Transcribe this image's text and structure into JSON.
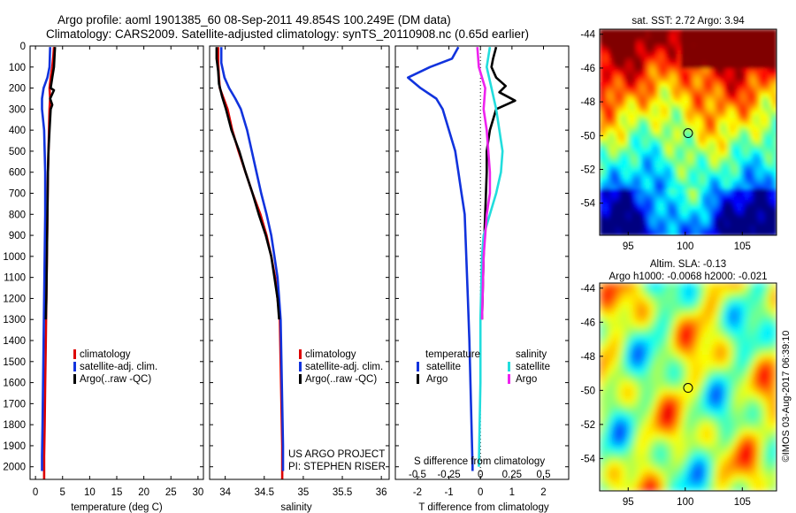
{
  "header": {
    "line1": "Argo profile: aoml 1901385_60 08-Sep-2011 49.854S 100.249E (DM data)",
    "line2": "Climatology: CARS2009. Satellite-adjusted climatology: synTS_20110908.nc (0.65d earlier)"
  },
  "colors": {
    "climatology": "#dd0000",
    "satellite": "#1133dd",
    "argo": "#000000",
    "sal_satellite": "#22dddd",
    "sal_argo": "#ee22ee"
  },
  "depth_axis": {
    "ticks": [
      0,
      100,
      200,
      300,
      400,
      500,
      600,
      700,
      800,
      900,
      1000,
      1100,
      1200,
      1300,
      1400,
      1500,
      1600,
      1700,
      1800,
      1900,
      2000
    ],
    "range": [
      0,
      2060
    ]
  },
  "chart_data": [
    {
      "type": "line",
      "id": "temperature",
      "xlabel": "temperature (deg C)",
      "xlim": [
        -1,
        31
      ],
      "xticks": [
        0,
        5,
        10,
        15,
        20,
        25,
        30
      ],
      "ylim": [
        0,
        2060
      ],
      "legend": {
        "items": [
          "climatology",
          "satellite-adj. clim.",
          "Argo(..raw -QC)"
        ],
        "placement": "center-bottom"
      },
      "series": [
        {
          "name": "climatology",
          "color_key": "climatology",
          "points": [
            [
              3.4,
              5
            ],
            [
              3.3,
              50
            ],
            [
              3.1,
              100
            ],
            [
              2.8,
              150
            ],
            [
              2.6,
              200
            ],
            [
              2.7,
              250
            ],
            [
              2.6,
              300
            ],
            [
              2.5,
              400
            ],
            [
              2.4,
              500
            ],
            [
              2.3,
              600
            ],
            [
              2.2,
              800
            ],
            [
              2.1,
              1000
            ],
            [
              2.0,
              1200
            ],
            [
              1.9,
              1400
            ],
            [
              1.8,
              1600
            ],
            [
              1.7,
              1800
            ],
            [
              1.6,
              1950
            ],
            [
              1.6,
              2060
            ]
          ]
        },
        {
          "name": "satellite-adj. clim.",
          "color_key": "satellite",
          "points": [
            [
              2.7,
              5
            ],
            [
              2.6,
              100
            ],
            [
              2.2,
              150
            ],
            [
              1.5,
              200
            ],
            [
              1.2,
              250
            ],
            [
              1.2,
              300
            ],
            [
              1.4,
              350
            ],
            [
              1.6,
              400
            ],
            [
              1.7,
              500
            ],
            [
              1.8,
              600
            ],
            [
              1.8,
              800
            ],
            [
              1.7,
              1000
            ],
            [
              1.6,
              1200
            ],
            [
              1.5,
              1400
            ],
            [
              1.4,
              1600
            ],
            [
              1.3,
              1800
            ],
            [
              1.2,
              1950
            ],
            [
              1.2,
              2020
            ]
          ]
        },
        {
          "name": "Argo(..raw -QC)",
          "color_key": "argo",
          "points": [
            [
              3.6,
              5
            ],
            [
              3.5,
              50
            ],
            [
              3.4,
              100
            ],
            [
              3.1,
              150
            ],
            [
              2.8,
              200
            ],
            [
              3.4,
              210
            ],
            [
              2.7,
              250
            ],
            [
              3.1,
              280
            ],
            [
              2.8,
              300
            ],
            [
              2.6,
              400
            ],
            [
              2.4,
              500
            ],
            [
              2.3,
              600
            ],
            [
              2.2,
              800
            ],
            [
              2.1,
              1000
            ],
            [
              2.0,
              1200
            ],
            [
              1.9,
              1300
            ]
          ]
        }
      ]
    },
    {
      "type": "line",
      "id": "salinity",
      "xlabel": "salinity",
      "xlim": [
        33.8,
        36.1
      ],
      "xticks": [
        34,
        34.5,
        35,
        35.5,
        36
      ],
      "xticklabels": [
        "34",
        "34.5",
        "35",
        "35.5",
        "36"
      ],
      "ylim": [
        0,
        2060
      ],
      "legend": {
        "items": [
          "climatology",
          "satellite-adj. clim.",
          "Argo(..raw -QC)"
        ],
        "placement": "center-bottom"
      },
      "credits": [
        "US ARGO PROJECT",
        "PI: STEPHEN RISER"
      ],
      "series": [
        {
          "name": "climatology",
          "color_key": "climatology",
          "points": [
            [
              33.91,
              5
            ],
            [
              33.91,
              80
            ],
            [
              33.92,
              150
            ],
            [
              33.93,
              200
            ],
            [
              33.98,
              250
            ],
            [
              34.03,
              300
            ],
            [
              34.09,
              400
            ],
            [
              34.17,
              500
            ],
            [
              34.26,
              600
            ],
            [
              34.35,
              700
            ],
            [
              34.45,
              800
            ],
            [
              34.53,
              900
            ],
            [
              34.59,
              1000
            ],
            [
              34.64,
              1100
            ],
            [
              34.67,
              1200
            ],
            [
              34.7,
              1300
            ],
            [
              34.71,
              1500
            ],
            [
              34.72,
              1700
            ],
            [
              34.73,
              1900
            ],
            [
              34.73,
              2060
            ]
          ]
        },
        {
          "name": "satellite-adj. clim.",
          "color_key": "satellite",
          "points": [
            [
              33.95,
              5
            ],
            [
              33.95,
              80
            ],
            [
              33.99,
              150
            ],
            [
              34.05,
              200
            ],
            [
              34.13,
              250
            ],
            [
              34.2,
              300
            ],
            [
              34.28,
              400
            ],
            [
              34.34,
              500
            ],
            [
              34.4,
              600
            ],
            [
              34.46,
              700
            ],
            [
              34.53,
              800
            ],
            [
              34.59,
              900
            ],
            [
              34.63,
              1000
            ],
            [
              34.67,
              1100
            ],
            [
              34.69,
              1200
            ],
            [
              34.71,
              1300
            ],
            [
              34.72,
              1500
            ],
            [
              34.73,
              1700
            ],
            [
              34.74,
              1900
            ],
            [
              34.74,
              2020
            ]
          ]
        },
        {
          "name": "Argo(..raw -QC)",
          "color_key": "argo",
          "points": [
            [
              33.89,
              5
            ],
            [
              33.89,
              60
            ],
            [
              33.91,
              120
            ],
            [
              33.92,
              180
            ],
            [
              33.96,
              240
            ],
            [
              34.01,
              300
            ],
            [
              34.08,
              400
            ],
            [
              34.18,
              500
            ],
            [
              34.26,
              600
            ],
            [
              34.35,
              700
            ],
            [
              34.43,
              800
            ],
            [
              34.52,
              900
            ],
            [
              34.59,
              1000
            ],
            [
              34.63,
              1100
            ],
            [
              34.67,
              1200
            ],
            [
              34.69,
              1300
            ]
          ]
        }
      ]
    },
    {
      "type": "line",
      "id": "difference",
      "xlabel": "T difference from climatology",
      "xlim": [
        -2.7,
        2.8
      ],
      "xticks": [
        -2,
        -1,
        0,
        1,
        2
      ],
      "sxlabel": "S difference from climatology",
      "sxticks_labels": [
        "-0.5",
        "-0.25",
        "0",
        "0.25",
        "0.5"
      ],
      "sxticks_at_T": [
        -2,
        -1,
        0,
        1,
        2
      ],
      "ylim": [
        0,
        2060
      ],
      "legend": {
        "temp_heading": "temperature",
        "sal_heading": "salinity",
        "items": [
          "satellite",
          "Argo",
          "satellite",
          "Argo"
        ],
        "placement": "bottom"
      },
      "series": [
        {
          "name": "satellite",
          "group": "temperature",
          "color_key": "satellite",
          "points": [
            [
              -0.7,
              5
            ],
            [
              -0.9,
              60
            ],
            [
              -1.6,
              100
            ],
            [
              -2.3,
              150
            ],
            [
              -1.9,
              200
            ],
            [
              -1.4,
              250
            ],
            [
              -1.2,
              300
            ],
            [
              -1.0,
              400
            ],
            [
              -0.8,
              500
            ],
            [
              -0.7,
              600
            ],
            [
              -0.6,
              700
            ],
            [
              -0.5,
              800
            ],
            [
              -0.45,
              1000
            ],
            [
              -0.4,
              1200
            ],
            [
              -0.35,
              1400
            ],
            [
              -0.3,
              1700
            ],
            [
              -0.25,
              2000
            ],
            [
              -0.25,
              2020
            ]
          ]
        },
        {
          "name": "Argo",
          "group": "temperature",
          "color_key": "argo",
          "points": [
            [
              0.5,
              5
            ],
            [
              0.4,
              60
            ],
            [
              0.35,
              100
            ],
            [
              0.5,
              150
            ],
            [
              0.8,
              190
            ],
            [
              0.6,
              220
            ],
            [
              1.1,
              260
            ],
            [
              0.5,
              300
            ],
            [
              0.3,
              400
            ],
            [
              0.2,
              500
            ],
            [
              0.2,
              600
            ],
            [
              0.15,
              800
            ],
            [
              0.1,
              1000
            ],
            [
              0.05,
              1300
            ]
          ]
        },
        {
          "name": "satellite",
          "group": "salinity",
          "color_key": "sal_satellite",
          "points": [
            [
              0.3,
              5
            ],
            [
              0.2,
              100
            ],
            [
              0.35,
              200
            ],
            [
              0.5,
              300
            ],
            [
              0.6,
              400
            ],
            [
              0.7,
              500
            ],
            [
              0.65,
              600
            ],
            [
              0.5,
              700
            ],
            [
              0.3,
              800
            ],
            [
              0.1,
              900
            ],
            [
              0.05,
              1000
            ],
            [
              0.0,
              1300
            ],
            [
              0.0,
              1600
            ],
            [
              -0.05,
              2000
            ]
          ]
        },
        {
          "name": "Argo",
          "group": "salinity",
          "color_key": "sal_argo",
          "points": [
            [
              -0.1,
              5
            ],
            [
              -0.05,
              100
            ],
            [
              0.15,
              200
            ],
            [
              0.1,
              300
            ],
            [
              0.2,
              400
            ],
            [
              0.25,
              500
            ],
            [
              0.3,
              600
            ],
            [
              0.3,
              700
            ],
            [
              0.2,
              800
            ],
            [
              0.15,
              900
            ],
            [
              0.1,
              1000
            ],
            [
              0.05,
              1300
            ]
          ]
        }
      ]
    },
    {
      "type": "heatmap",
      "id": "sst-map",
      "title": "sat. SST: 2.72 Argo: 3.94",
      "xlim": [
        92.5,
        108
      ],
      "ylim": [
        -55.9,
        -43.7
      ],
      "xticks": [
        95,
        100,
        105
      ],
      "yticks": [
        -44,
        -46,
        -48,
        -50,
        -52,
        -54
      ],
      "marker": [
        100.249,
        -49.854
      ]
    },
    {
      "type": "heatmap",
      "id": "sla-map",
      "title": "Altim. SLA: -0.13",
      "subtitle": "Argo h1000: -0.0068 h2000: -0.021",
      "xlim": [
        92.5,
        108
      ],
      "ylim": [
        -55.9,
        -43.7
      ],
      "xticks": [
        95,
        100,
        105
      ],
      "yticks": [
        -44,
        -46,
        -48,
        -50,
        -52,
        -54
      ],
      "marker": [
        100.249,
        -49.854
      ]
    }
  ],
  "credit": "©IMOS 03-Aug-2017 06:39:10"
}
